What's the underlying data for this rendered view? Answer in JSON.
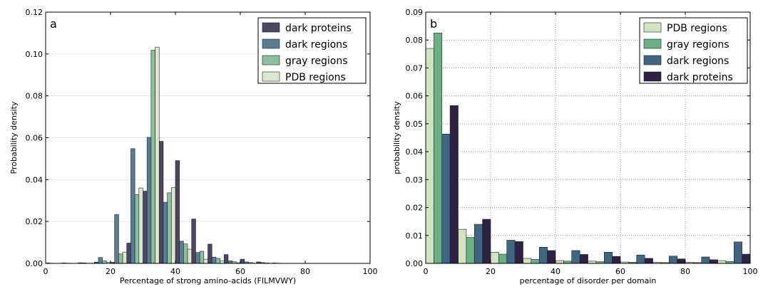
{
  "chart_data": [
    {
      "type": "bar",
      "panel_label": "a",
      "xlabel": "Percentage of strong amino-acids (FILMVWY)",
      "ylabel": "Probability density",
      "xlim": [
        0,
        100
      ],
      "ylim": [
        0,
        0.12
      ],
      "xticks": [
        "0",
        "20",
        "40",
        "60",
        "80",
        "100"
      ],
      "yticks": [
        "0.00",
        "0.02",
        "0.04",
        "0.06",
        "0.08",
        "0.10",
        "0.12"
      ],
      "grid": "horizontal",
      "legend_position": "top-right",
      "bin_width": 5,
      "x": [
        0,
        5,
        10,
        15,
        20,
        25,
        30,
        35,
        40,
        45,
        50,
        55,
        60,
        65,
        70
      ],
      "series": [
        {
          "name": "dark proteins",
          "color": "#4d4564",
          "values": [
            0.0002,
            0.0002,
            0.0003,
            0.0006,
            0.0005,
            0.0097,
            0.0345,
            0.0583,
            0.0491,
            0.0212,
            0.0092,
            0.0042,
            0.002,
            0.0007,
            0.0002
          ]
        },
        {
          "name": "dark regions",
          "color": "#5b7d94",
          "values": [
            0.0001,
            0.0001,
            0.0002,
            0.0028,
            0.0233,
            0.0548,
            0.0602,
            0.0292,
            0.0106,
            0.0052,
            0.003,
            0.0012,
            0.0007,
            0.0004,
            0.0001
          ]
        },
        {
          "name": "gray regions",
          "color": "#8cbf9f",
          "values": [
            0.0,
            0.0,
            0.0001,
            0.0012,
            0.0045,
            0.0328,
            0.1018,
            0.0337,
            0.0093,
            0.0058,
            0.0024,
            0.0008,
            0.0004,
            0.0002,
            0.0
          ]
        },
        {
          "name": "PDB regions",
          "color": "#dce8cd",
          "values": [
            0.0,
            0.0,
            0.0001,
            0.0006,
            0.0054,
            0.036,
            0.1033,
            0.0362,
            0.0068,
            0.002,
            0.0011,
            0.0003,
            0.0001,
            0.0001,
            0.0
          ]
        }
      ]
    },
    {
      "type": "bar",
      "panel_label": "b",
      "xlabel": "percentage of disorder per domain",
      "ylabel": "probability density",
      "xlim": [
        0,
        100
      ],
      "ylim": [
        0,
        0.09
      ],
      "xticks": [
        "0",
        "20",
        "40",
        "60",
        "80",
        "100"
      ],
      "yticks": [
        "0.00",
        "0.01",
        "0.02",
        "0.03",
        "0.04",
        "0.05",
        "0.06",
        "0.07",
        "0.08",
        "0.09"
      ],
      "grid": "both-dotted",
      "legend_position": "top-right",
      "bin_width": 10,
      "x": [
        0,
        10,
        20,
        30,
        40,
        50,
        60,
        70,
        80,
        90
      ],
      "series": [
        {
          "name": "PDB regions",
          "color": "#d3e2c1",
          "values": [
            0.077,
            0.0122,
            0.004,
            0.0018,
            0.001,
            0.0008,
            0.0005,
            0.0004,
            0.0004,
            0.001
          ]
        },
        {
          "name": "gray regions",
          "color": "#6aaf86",
          "values": [
            0.0825,
            0.0093,
            0.0033,
            0.0014,
            0.0008,
            0.0006,
            0.0004,
            0.0003,
            0.0003,
            0.0007
          ]
        },
        {
          "name": "dark regions",
          "color": "#3f6781",
          "values": [
            0.0463,
            0.014,
            0.0083,
            0.0058,
            0.0046,
            0.004,
            0.003,
            0.0026,
            0.0023,
            0.0077
          ]
        },
        {
          "name": "dark proteins",
          "color": "#2e2244",
          "values": [
            0.0565,
            0.0158,
            0.0078,
            0.0046,
            0.0032,
            0.0025,
            0.0018,
            0.0016,
            0.0013,
            0.0033
          ]
        }
      ]
    }
  ]
}
